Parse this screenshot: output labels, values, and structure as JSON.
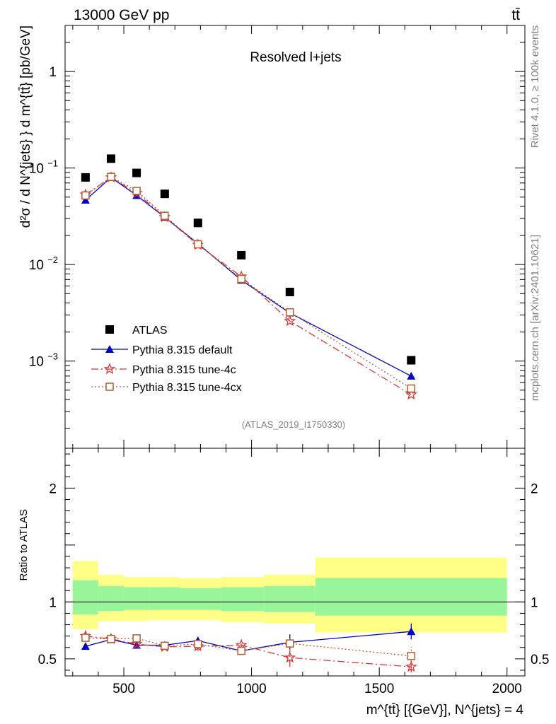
{
  "header": {
    "left": "13000 GeV pp",
    "right": "tt̄"
  },
  "side": {
    "rivet": "Rivet 4.1.0, ≥ 100k events",
    "mcplots": "mcplots.cern.ch [arXiv:2401.10621]"
  },
  "chart_data": {
    "type": "scatter",
    "title": "Resolved l+jets",
    "watermark": "(ATLAS_2019_I1750330)",
    "xlabel": "m^{tt̄} [{GeV}], N^{jets} = 4",
    "ylabel": "d²σ / d N^{jets} } d m^{tt̄} [pb/GeV]",
    "ratio_ylabel": "Ratio to ATLAS",
    "xlim": [
      270,
      2070
    ],
    "ylim": [
      0.000125,
      3.0
    ],
    "yscale": "log",
    "ratio_ylim": [
      0.35,
      2.35
    ],
    "x_ticks": [
      500,
      1000,
      1500,
      2000
    ],
    "y_ticks": [
      {
        "v": 0.001,
        "t": "10",
        "e": "−3"
      },
      {
        "v": 0.01,
        "t": "10",
        "e": "−2"
      },
      {
        "v": 0.1,
        "t": "10",
        "e": "−1"
      },
      {
        "v": 1,
        "t": "1",
        "e": ""
      }
    ],
    "ratio_ticks": [
      {
        "v": 0.5,
        "t": "0.5"
      },
      {
        "v": 1,
        "t": "1"
      },
      {
        "v": 2,
        "t": "2"
      }
    ],
    "bins": [
      [
        300,
        400
      ],
      [
        400,
        500
      ],
      [
        500,
        600
      ],
      [
        600,
        720
      ],
      [
        720,
        880
      ],
      [
        880,
        1050
      ],
      [
        1050,
        1250
      ],
      [
        1250,
        2000
      ]
    ],
    "x": [
      350,
      450,
      550,
      660,
      790,
      960,
      1150,
      1625
    ],
    "data": {
      "name": "ATLAS",
      "values": [
        0.08,
        0.125,
        0.089,
        0.054,
        0.027,
        0.0125,
        0.0052,
        0.00102
      ],
      "band_outer": [
        [
          0.76,
          1.36
        ],
        [
          0.83,
          1.24
        ],
        [
          0.83,
          1.22
        ],
        [
          0.84,
          1.22
        ],
        [
          0.84,
          1.21
        ],
        [
          0.82,
          1.22
        ],
        [
          0.81,
          1.24
        ],
        [
          0.73,
          1.39
        ]
      ],
      "band_inner": [
        [
          0.89,
          1.19
        ],
        [
          0.92,
          1.14
        ],
        [
          0.93,
          1.13
        ],
        [
          0.93,
          1.13
        ],
        [
          0.93,
          1.12
        ],
        [
          0.92,
          1.13
        ],
        [
          0.91,
          1.14
        ],
        [
          0.88,
          1.21
        ]
      ]
    },
    "series": [
      {
        "name": "Pythia 8.315 default",
        "color": "#0000cc",
        "marker": "triangle",
        "dash": "",
        "values": [
          0.0465,
          0.08,
          0.052,
          0.031,
          0.0165,
          0.0069,
          0.00315,
          0.0007
        ],
        "ratio": [
          0.61,
          0.67,
          0.62,
          0.62,
          0.66,
          0.57,
          0.645,
          0.74
        ],
        "ratio_err": [
          0.02,
          0.015,
          0.015,
          0.02,
          0.03,
          0.03,
          0.07,
          0.07
        ]
      },
      {
        "name": "Pythia 8.315 tune-4c",
        "color": "#dd3333",
        "marker": "star",
        "dash": "10,4,2,4",
        "values": [
          0.053,
          0.08,
          0.055,
          0.031,
          0.016,
          0.0075,
          0.0026,
          0.00045
        ],
        "ratio": [
          0.7,
          0.675,
          0.63,
          0.605,
          0.61,
          0.62,
          0.51,
          0.43
        ],
        "ratio_err": [
          0.03,
          0.015,
          0.02,
          0.025,
          0.04,
          0.05,
          0.08,
          0.05
        ]
      },
      {
        "name": "Pythia 8.315 tune-4cx",
        "color": "#b85c2e",
        "marker": "square",
        "dash": "2,3",
        "values": [
          0.052,
          0.081,
          0.058,
          0.032,
          0.0162,
          0.0071,
          0.0032,
          0.00052
        ],
        "ratio": [
          0.685,
          0.675,
          0.68,
          0.615,
          0.63,
          0.57,
          0.635,
          0.525
        ],
        "ratio_err": [
          0.02,
          0.015,
          0.015,
          0.02,
          0.03,
          0.03,
          0.06,
          0.08
        ]
      }
    ]
  }
}
